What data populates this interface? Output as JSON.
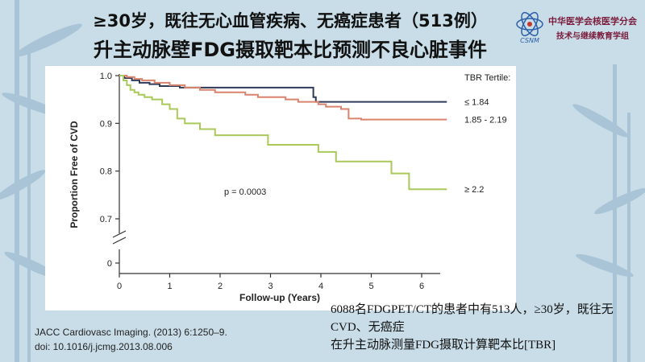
{
  "slide": {
    "title_line1": "≥30岁，既往无心血管疾病、无癌症患者（513例）",
    "title_line2": "升主动脉壁FDG摄取靶本比预测不良心脏事件",
    "org_line1": "中华医学会核医学分会",
    "org_line2": "技术与继续教育学组",
    "logo_text": "CSNM",
    "citation_line1": "JACC Cardiovasc Imaging. (2013) 6:1250–9.",
    "citation_line2": "doi: 10.1016/j.jcmg.2013.08.006",
    "note_line1": "6088名FDGPET/CT的患者中有513人，≥30岁，既往无CVD、无癌症",
    "note_line2": "在升主动脉测量FDG摄取计算靶本比[TBR]"
  },
  "colors": {
    "tertile_low": "#2d3a5a",
    "tertile_mid": "#d9826c",
    "tertile_high": "#a9c95a",
    "background": "#c9dde8"
  },
  "chart_data": {
    "type": "line",
    "xlabel": "Follow-up (Years)",
    "ylabel": "Proportion Free of CVD",
    "xlim": [
      0,
      6.5
    ],
    "ylim": [
      0.7,
      1.0
    ],
    "y_axis_break": true,
    "x_ticks": [
      "0",
      "1",
      "2",
      "3",
      "4",
      "5",
      "6"
    ],
    "y_ticks": [
      "1.0",
      "0.9",
      "0.8",
      "0.7",
      "0"
    ],
    "legend_title": "TBR Tertile:",
    "annotation": "p = 0.0003",
    "grid": false,
    "series": [
      {
        "name": "≤ 1.84",
        "color_key": "tertile_low",
        "x": [
          0,
          0.1,
          0.25,
          0.4,
          0.6,
          0.8,
          1.2,
          1.6,
          2.0,
          3.0,
          3.8,
          3.85,
          3.9,
          6.5
        ],
        "y": [
          1.0,
          0.995,
          0.99,
          0.985,
          0.982,
          0.978,
          0.975,
          0.975,
          0.975,
          0.975,
          0.975,
          0.955,
          0.945,
          0.945
        ]
      },
      {
        "name": "1.85 - 2.19",
        "color_key": "tertile_mid",
        "x": [
          0,
          0.15,
          0.3,
          0.45,
          0.7,
          1.0,
          1.3,
          1.6,
          1.9,
          2.3,
          2.5,
          2.75,
          3.1,
          3.3,
          3.55,
          3.8,
          3.95,
          4.1,
          4.4,
          4.55,
          4.8,
          6.5
        ],
        "y": [
          1.0,
          0.997,
          0.993,
          0.99,
          0.985,
          0.98,
          0.975,
          0.97,
          0.965,
          0.965,
          0.96,
          0.955,
          0.955,
          0.95,
          0.945,
          0.945,
          0.94,
          0.935,
          0.93,
          0.91,
          0.908,
          0.908
        ]
      },
      {
        "name": "≥ 2.2",
        "color_key": "tertile_high",
        "x": [
          0,
          0.08,
          0.15,
          0.22,
          0.3,
          0.38,
          0.5,
          0.65,
          0.85,
          1.0,
          1.15,
          1.3,
          1.6,
          1.9,
          2.5,
          2.95,
          3.5,
          3.95,
          4.3,
          5.0,
          5.4,
          5.75,
          6.5
        ],
        "y": [
          1.0,
          0.99,
          0.98,
          0.97,
          0.965,
          0.96,
          0.955,
          0.95,
          0.94,
          0.93,
          0.91,
          0.9,
          0.888,
          0.875,
          0.875,
          0.855,
          0.855,
          0.84,
          0.82,
          0.82,
          0.795,
          0.762,
          0.762
        ]
      }
    ]
  }
}
